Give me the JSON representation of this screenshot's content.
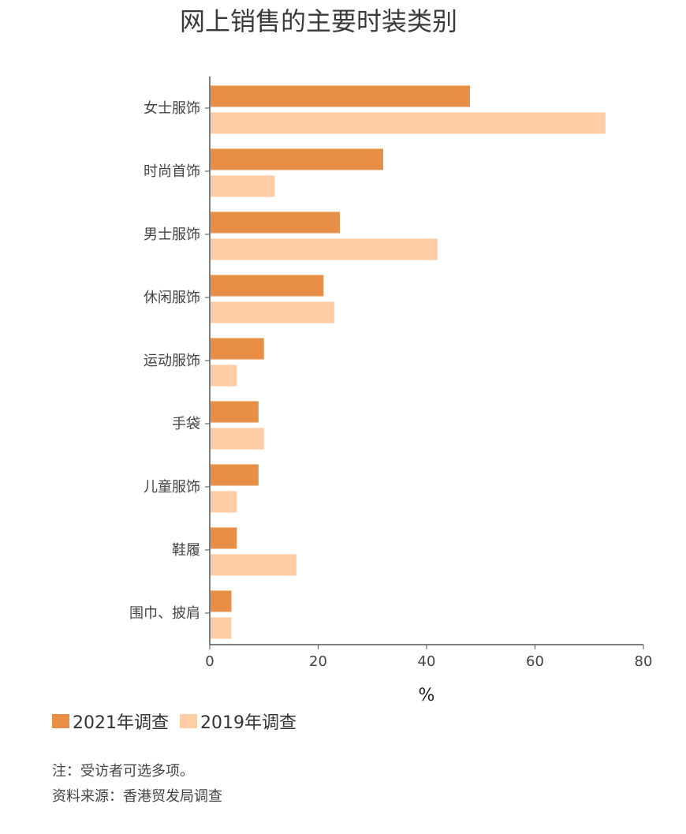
{
  "chart_data": {
    "type": "bar",
    "orientation": "horizontal",
    "title": "网上销售的主要时装类别",
    "xlabel": "%",
    "ylabel": "",
    "xlim": [
      0,
      80
    ],
    "xticks": [
      0,
      20,
      40,
      60,
      80
    ],
    "categories": [
      "女士服饰",
      "时尚首饰",
      "男士服饰",
      "休闲服饰",
      "运动服饰",
      "手袋",
      "儿童服饰",
      "鞋履",
      "围巾、披肩"
    ],
    "series": [
      {
        "name": "2021年调查",
        "color": "#E88E45",
        "values": [
          48,
          32,
          24,
          21,
          10,
          9,
          9,
          5,
          4
        ]
      },
      {
        "name": "2019年调查",
        "color": "#FFCCA3",
        "values": [
          73,
          12,
          42,
          23,
          5,
          10,
          5,
          16,
          4
        ]
      }
    ],
    "grid": false,
    "legend_position": "bottom-left"
  },
  "notes": {
    "note": "注：受访者可选多项。",
    "source": "资料来源：香港贸发局调查"
  },
  "colors": {
    "axis": "#555555"
  }
}
